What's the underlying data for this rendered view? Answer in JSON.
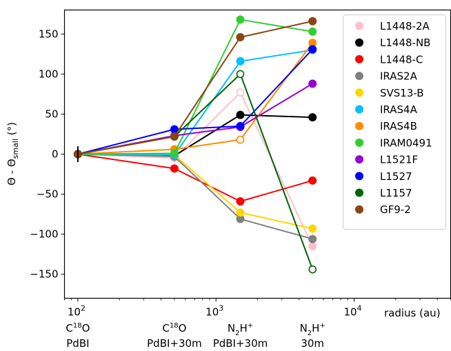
{
  "chart_data": {
    "type": "line",
    "xscale": "log",
    "xlim": [
      80,
      50000
    ],
    "ylim": [
      -180,
      180
    ],
    "xlabel": "radius (au)",
    "ylabel_main": "Θ - Θ",
    "ylabel_sub": "small",
    "ylabel_unit": "(°)",
    "yticks": [
      -150,
      -100,
      -50,
      0,
      50,
      100,
      150
    ],
    "ytick_labels": [
      "−150",
      "−100",
      "−50",
      "0",
      "50",
      "100",
      "150"
    ],
    "xticks": [
      {
        "value": 100,
        "base": "10",
        "exp": "2"
      },
      {
        "value": 1000,
        "base": "10",
        "exp": "3"
      },
      {
        "value": 10000,
        "base": "10",
        "exp": "4"
      }
    ],
    "x": [
      100,
      500,
      1500,
      5000
    ],
    "categories": [
      {
        "x": 100,
        "line1_main": "C",
        "line1_sup": "18",
        "line1_tail": "O",
        "line1_sub": "",
        "line2": "PdBI"
      },
      {
        "x": 500,
        "line1_main": "C",
        "line1_sup": "18",
        "line1_tail": "O",
        "line1_sub": "",
        "line2": "PdBI+30m"
      },
      {
        "x": 1500,
        "line1_main": "N",
        "line1_sub": "2",
        "line1_tail": "H",
        "line1_sup": "+",
        "line2": "PdBI+30m"
      },
      {
        "x": 5000,
        "line1_main": "N",
        "line1_sub": "2",
        "line1_tail": "H",
        "line1_sup": "+",
        "line2": "30m"
      }
    ],
    "legend_position": "top-right",
    "grid": false,
    "series": [
      {
        "name": "L1448-2A",
        "color": "#ffc0cb",
        "values": [
          0,
          -5,
          77,
          -115
        ],
        "open": [
          false,
          false,
          true,
          false
        ]
      },
      {
        "name": "L1448-NB",
        "color": "#000000",
        "values": [
          0,
          -2,
          49,
          46
        ],
        "open": [
          false,
          false,
          false,
          false
        ]
      },
      {
        "name": "L1448-C",
        "color": "#ff0000",
        "values": [
          0,
          -18,
          -59,
          -33
        ],
        "open": [
          false,
          false,
          false,
          false
        ]
      },
      {
        "name": "IRAS2A",
        "color": "#808080",
        "values": [
          0,
          -3,
          -81,
          -106
        ],
        "open": [
          false,
          false,
          false,
          false
        ]
      },
      {
        "name": "SVS13-B",
        "color": "#ffd700",
        "values": [
          0,
          -1,
          -73,
          -93
        ],
        "open": [
          false,
          false,
          false,
          false
        ]
      },
      {
        "name": "IRAS4A",
        "color": "#00bfff",
        "values": [
          0,
          -1,
          116,
          130
        ],
        "open": [
          false,
          false,
          false,
          false
        ]
      },
      {
        "name": "IRAS4B",
        "color": "#ff8c00",
        "values": [
          0,
          6,
          18,
          139
        ],
        "open": [
          false,
          false,
          true,
          false
        ]
      },
      {
        "name": "IRAM0491",
        "color": "#32cd32",
        "values": [
          0,
          1,
          168,
          153
        ],
        "open": [
          false,
          false,
          false,
          false
        ]
      },
      {
        "name": "L1521F",
        "color": "#9400d3",
        "values": [
          0,
          23,
          34,
          88
        ],
        "open": [
          false,
          false,
          false,
          false
        ]
      },
      {
        "name": "L1527",
        "color": "#0000ff",
        "values": [
          0,
          31,
          35,
          131
        ],
        "open": [
          false,
          false,
          false,
          false
        ]
      },
      {
        "name": "L1157",
        "color": "#006400",
        "values": [
          0,
          22,
          100,
          -144
        ],
        "open": [
          false,
          false,
          true,
          true
        ]
      },
      {
        "name": "GF9-2",
        "color": "#8b4513",
        "values": [
          0,
          22,
          146,
          166
        ],
        "open": [
          false,
          false,
          false,
          false
        ]
      }
    ],
    "errorbar": {
      "x": 100,
      "y": 0,
      "err": 10,
      "color": "#000000"
    }
  }
}
